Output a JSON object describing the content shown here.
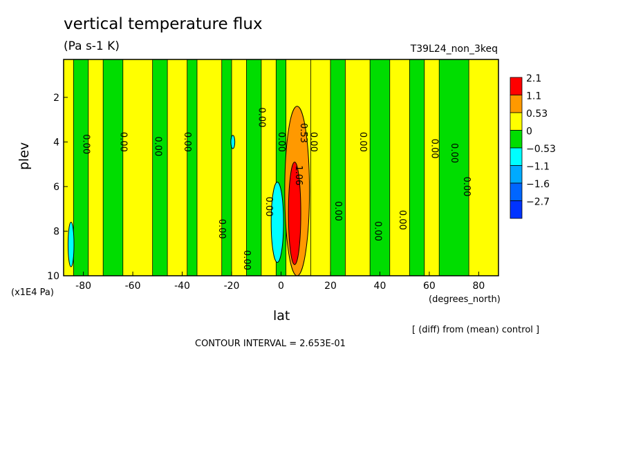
{
  "chart_data": {
    "type": "heatmap",
    "title": "vertical temperature flux",
    "units": "(Pa s-1 K)",
    "run_label": "T39L24_non_3keq",
    "xlabel": "lat",
    "ylabel": "plev",
    "x_unit": "(degrees_north)",
    "y_unit": "(x1E4 Pa)",
    "note": "[ (diff) from (mean) control ]",
    "contour_interval": "CONTOUR INTERVAL = 2.653E-01",
    "xlim": [
      -88,
      88
    ],
    "ylim": [
      10,
      0.3
    ],
    "x_ticks": [
      -80,
      -60,
      -40,
      -20,
      0,
      20,
      40,
      60,
      80
    ],
    "y_ticks": [
      2,
      4,
      6,
      8,
      10
    ],
    "levels": [
      {
        "label": "2.1",
        "color": "#ff0000"
      },
      {
        "label": "1.1",
        "color": "#ff9900"
      },
      {
        "label": "0.53",
        "color": "#ffff00"
      },
      {
        "label": "0",
        "color": "#00dd00"
      },
      {
        "label": "−0.53",
        "color": "#00ffff"
      },
      {
        "label": "−1.1",
        "color": "#00aaff"
      },
      {
        "label": "−1.6",
        "color": "#0066ff"
      },
      {
        "label": "−2.7",
        "color": "#0033ff"
      }
    ],
    "bands": [
      {
        "lat_min": -88,
        "lat_max": -84,
        "class": "yellow"
      },
      {
        "lat_min": -84,
        "lat_max": -78,
        "class": "green"
      },
      {
        "lat_min": -78,
        "lat_max": -72,
        "class": "yellow"
      },
      {
        "lat_min": -72,
        "lat_max": -64,
        "class": "green"
      },
      {
        "lat_min": -64,
        "lat_max": -52,
        "class": "yellow"
      },
      {
        "lat_min": -52,
        "lat_max": -46,
        "class": "green"
      },
      {
        "lat_min": -46,
        "lat_max": -38,
        "class": "yellow"
      },
      {
        "lat_min": -38,
        "lat_max": -34,
        "class": "green"
      },
      {
        "lat_min": -34,
        "lat_max": -24,
        "class": "yellow"
      },
      {
        "lat_min": -24,
        "lat_max": -20,
        "class": "green"
      },
      {
        "lat_min": -20,
        "lat_max": -14,
        "class": "yellow"
      },
      {
        "lat_min": -14,
        "lat_max": -8,
        "class": "green"
      },
      {
        "lat_min": -8,
        "lat_max": -2,
        "class": "yellow"
      },
      {
        "lat_min": -2,
        "lat_max": 2,
        "class": "green"
      },
      {
        "lat_min": 2,
        "lat_max": 12,
        "class": "yellow"
      },
      {
        "lat_min": 12,
        "lat_max": 20,
        "class": "yellow"
      },
      {
        "lat_min": 20,
        "lat_max": 26,
        "class": "green"
      },
      {
        "lat_min": 26,
        "lat_max": 36,
        "class": "yellow"
      },
      {
        "lat_min": 36,
        "lat_max": 44,
        "class": "green"
      },
      {
        "lat_min": 44,
        "lat_max": 52,
        "class": "yellow"
      },
      {
        "lat_min": 52,
        "lat_max": 58,
        "class": "green"
      },
      {
        "lat_min": 58,
        "lat_max": 64,
        "class": "yellow"
      },
      {
        "lat_min": 64,
        "lat_max": 76,
        "class": "green"
      },
      {
        "lat_min": 76,
        "lat_max": 88,
        "class": "yellow"
      }
    ],
    "features": [
      {
        "class": "orange",
        "lat": 6.5,
        "plev": 6.2,
        "lat_halfwidth": 5,
        "plev_halfwidth": 3.8
      },
      {
        "class": "red",
        "lat": 5.5,
        "plev": 7.2,
        "lat_halfwidth": 2.5,
        "plev_halfwidth": 2.3
      },
      {
        "class": "cyan",
        "lat": -1.5,
        "plev": 7.6,
        "lat_halfwidth": 2.5,
        "plev_halfwidth": 1.8
      },
      {
        "class": "cyan",
        "lat": -85,
        "plev": 8.6,
        "lat_halfwidth": 1.2,
        "plev_halfwidth": 1
      },
      {
        "class": "cyan",
        "lat": -19.5,
        "plev": 4,
        "lat_halfwidth": 0.8,
        "plev_halfwidth": 0.3
      }
    ],
    "contour_labels": [
      {
        "text": "0.00",
        "lat": -79,
        "plev": 4.1
      },
      {
        "text": "0.00",
        "lat": -64,
        "plev": 4.0
      },
      {
        "text": "0.00",
        "lat": -50,
        "plev": 4.2
      },
      {
        "text": "0.00",
        "lat": -38,
        "plev": 4.0
      },
      {
        "text": "0.00",
        "lat": -8,
        "plev": 2.9
      },
      {
        "text": "0.00",
        "lat": 0,
        "plev": 4.0
      },
      {
        "text": "0.53",
        "lat": 9,
        "plev": 3.6
      },
      {
        "text": "0.00",
        "lat": 13,
        "plev": 4.0
      },
      {
        "text": "0.00",
        "lat": 33,
        "plev": 4.0
      },
      {
        "text": "0.00",
        "lat": 62,
        "plev": 4.3
      },
      {
        "text": "0.00",
        "lat": 70,
        "plev": 4.5
      },
      {
        "text": "0.00",
        "lat": 75,
        "plev": 6.0
      },
      {
        "text": "0.00",
        "lat": 23,
        "plev": 7.1
      },
      {
        "text": "0.00",
        "lat": 39,
        "plev": 8.0
      },
      {
        "text": "0.00",
        "lat": 49,
        "plev": 7.5
      },
      {
        "text": "0.00",
        "lat": -24,
        "plev": 7.9
      },
      {
        "text": "0.00",
        "lat": -14,
        "plev": 9.3
      },
      {
        "text": "0.00",
        "lat": -5,
        "plev": 6.9
      },
      {
        "text": "1.06",
        "lat": 7,
        "plev": 5.5
      }
    ],
    "colors": {
      "yellow": "#ffff00",
      "green": "#00dd00",
      "orange": "#ff9900",
      "red": "#ff0000",
      "cyan": "#00ffff"
    }
  }
}
